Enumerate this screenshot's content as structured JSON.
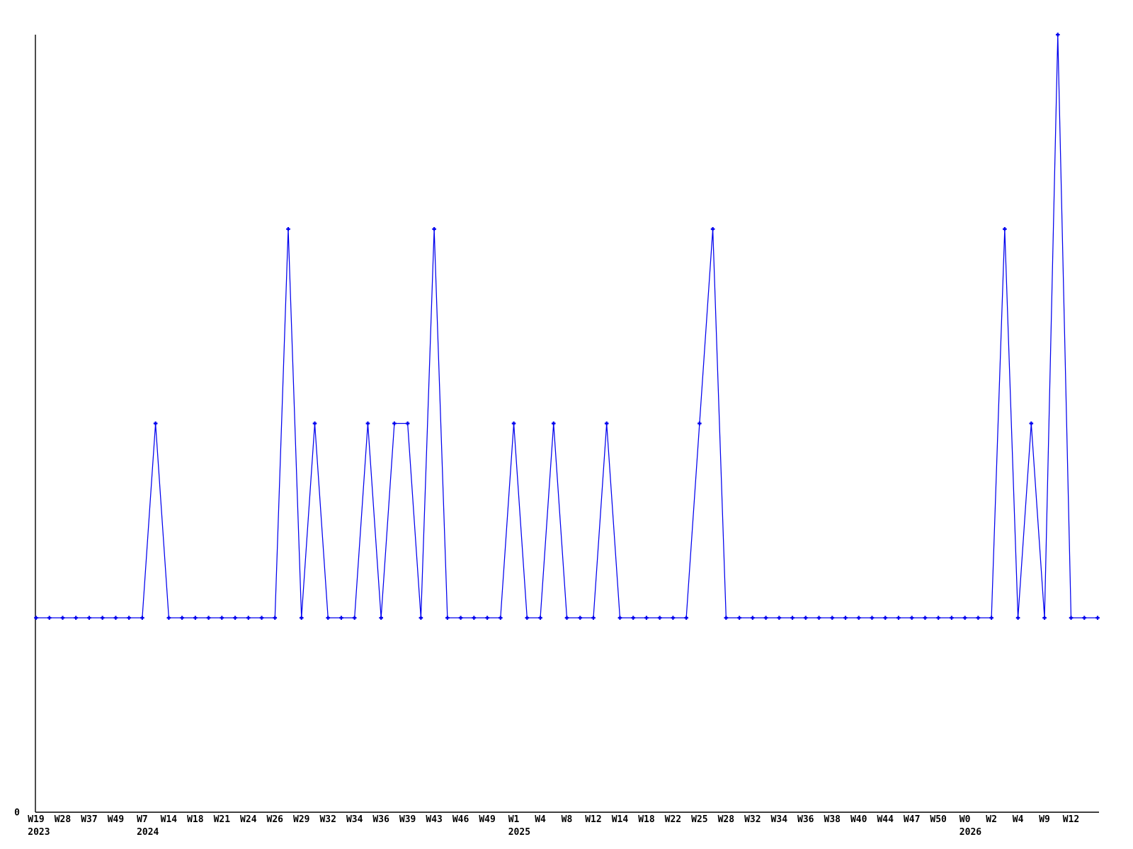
{
  "chart_data": {
    "type": "line",
    "title": "",
    "xlabel": "",
    "ylabel": "",
    "y_axis": {
      "origin_label": "0",
      "min": 0,
      "max": 4,
      "gridlines": false
    },
    "legend": "none",
    "series_color": "#0000ee",
    "axis_color": "#000000",
    "background_color": "#ffffff",
    "marker_style": "plus",
    "points_per_tick_label": 2,
    "x_tick_labels": [
      "W19",
      "W28",
      "W37",
      "W49",
      "W7",
      "W14",
      "W18",
      "W21",
      "W24",
      "W26",
      "W29",
      "W32",
      "W34",
      "W36",
      "W39",
      "W43",
      "W46",
      "W49",
      "W1",
      "W4",
      "W8",
      "W12",
      "W14",
      "W18",
      "W22",
      "W25",
      "W28",
      "W32",
      "W34",
      "W36",
      "W38",
      "W40",
      "W44",
      "W47",
      "W50",
      "W0",
      "W2",
      "W4",
      "W9",
      "W12"
    ],
    "year_row": [
      {
        "tick_index": 0,
        "year": "2023"
      },
      {
        "tick_index": 4,
        "year": "2024"
      },
      {
        "tick_index": 18,
        "year": "2025"
      },
      {
        "tick_index": 35,
        "year": "2026"
      }
    ],
    "values": [
      1,
      1,
      1,
      1,
      1,
      1,
      1,
      1,
      1,
      2,
      1,
      1,
      1,
      1,
      1,
      1,
      1,
      1,
      1,
      3,
      1,
      2,
      1,
      1,
      1,
      2,
      1,
      2,
      2,
      1,
      3,
      1,
      1,
      1,
      1,
      1,
      2,
      1,
      1,
      2,
      1,
      1,
      1,
      2,
      1,
      1,
      1,
      1,
      1,
      1,
      2,
      3,
      1,
      1,
      1,
      1,
      1,
      1,
      1,
      1,
      1,
      1,
      1,
      1,
      1,
      1,
      1,
      1,
      1,
      1,
      1,
      1,
      1,
      3,
      1,
      2,
      1,
      4,
      1,
      1,
      1
    ]
  }
}
